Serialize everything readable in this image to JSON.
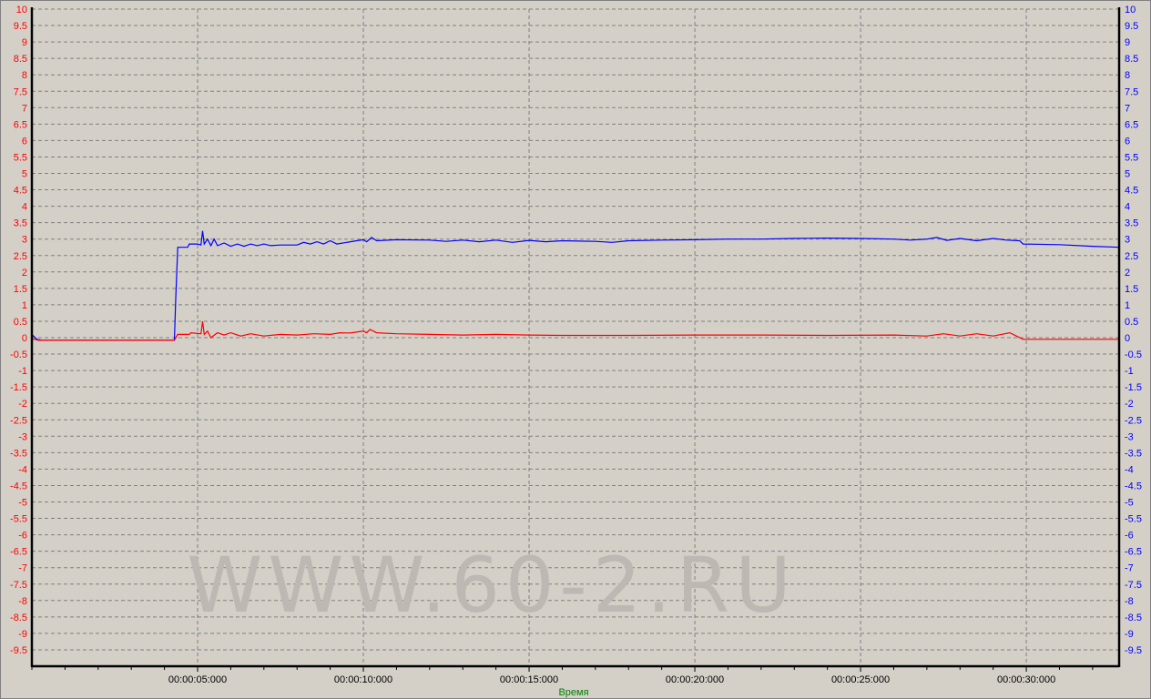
{
  "chart_data": {
    "type": "line",
    "title": "",
    "xlabel": "Время",
    "ylabel": "",
    "xlim": [
      "00:00:00:000",
      "00:00:32:800"
    ],
    "xlim_seconds": [
      0,
      32.8
    ],
    "ylim": [
      -10,
      10
    ],
    "y_tick_step": 0.5,
    "y_tick_labels": [
      "10",
      "9.5",
      "9",
      "8.5",
      "8",
      "7.5",
      "7",
      "6.5",
      "6",
      "5.5",
      "5",
      "4.5",
      "4",
      "3.5",
      "3",
      "2.5",
      "2",
      "1.5",
      "1",
      "0.5",
      "0",
      "-0.5",
      "-1",
      "-1.5",
      "-2",
      "-2.5",
      "-3",
      "-3.5",
      "-4",
      "-4.5",
      "-5",
      "-5.5",
      "-6",
      "-6.5",
      "-7",
      "-7.5",
      "-8",
      "-8.5",
      "-9",
      "-9.5"
    ],
    "x_tick_seconds": [
      5,
      10,
      15,
      20,
      25,
      30
    ],
    "x_tick_labels": [
      "00:00:05:000",
      "00:00:10:000",
      "00:00:15:000",
      "00:00:20:000",
      "00:00:25:000",
      "00:00:30:000"
    ],
    "x_minor_tick_step_seconds": 1,
    "grid": true,
    "left_axis_color": "#ff0000",
    "right_axis_color": "#0000ff",
    "xlabel_color": "#008000",
    "background": "#d4d0c8",
    "series": [
      {
        "color": "#0000ff",
        "axis": "right",
        "x": [
          0,
          0.15,
          0.3,
          4.3,
          4.34,
          4.4,
          4.7,
          4.75,
          5.0,
          5.1,
          5.15,
          5.2,
          5.3,
          5.4,
          5.5,
          5.6,
          5.8,
          6.0,
          6.2,
          6.4,
          6.6,
          6.8,
          7.0,
          7.2,
          7.5,
          8.0,
          8.2,
          8.4,
          8.6,
          8.8,
          9.0,
          9.2,
          9.5,
          9.8,
          10.0,
          10.1,
          10.25,
          10.4,
          11,
          12,
          12.5,
          13,
          13.5,
          14,
          14.5,
          15,
          15.5,
          16,
          17,
          17.5,
          18,
          19,
          20,
          21,
          22,
          23,
          24,
          25,
          26,
          26.5,
          27,
          27.3,
          27.6,
          28,
          28.5,
          29,
          29.4,
          29.8,
          29.9,
          31,
          32,
          32.8
        ],
        "y": [
          0.1,
          -0.05,
          -0.08,
          -0.08,
          1.2,
          2.75,
          2.75,
          2.85,
          2.85,
          2.82,
          3.25,
          2.85,
          3.0,
          2.8,
          3.0,
          2.8,
          2.88,
          2.78,
          2.85,
          2.78,
          2.85,
          2.8,
          2.85,
          2.8,
          2.82,
          2.82,
          2.9,
          2.85,
          2.92,
          2.85,
          2.95,
          2.85,
          2.9,
          2.95,
          2.98,
          2.92,
          3.05,
          2.95,
          2.98,
          2.97,
          2.93,
          2.97,
          2.92,
          2.97,
          2.9,
          2.96,
          2.92,
          2.95,
          2.93,
          2.9,
          2.95,
          2.97,
          2.98,
          3.0,
          3.0,
          3.02,
          3.03,
          3.02,
          3.0,
          2.97,
          3.0,
          3.05,
          2.96,
          3.02,
          2.95,
          3.02,
          2.97,
          2.95,
          2.85,
          2.83,
          2.78,
          2.75
        ]
      },
      {
        "color": "#ff0000",
        "axis": "left",
        "x": [
          0,
          0.2,
          4.3,
          4.4,
          4.75,
          4.8,
          5.1,
          5.15,
          5.2,
          5.3,
          5.4,
          5.6,
          5.8,
          6.0,
          6.3,
          6.6,
          7.0,
          7.5,
          8.0,
          8.5,
          9.0,
          9.3,
          9.6,
          10.0,
          10.1,
          10.2,
          10.4,
          11,
          12,
          13,
          14,
          15,
          16,
          18,
          20,
          22,
          24,
          26,
          27,
          27.5,
          28,
          28.5,
          29,
          29.5,
          29.7,
          29.9,
          32.8
        ],
        "y": [
          -0.03,
          -0.08,
          -0.08,
          0.1,
          0.1,
          0.15,
          0.12,
          0.5,
          0.1,
          0.2,
          0.0,
          0.15,
          0.08,
          0.15,
          0.05,
          0.12,
          0.05,
          0.1,
          0.08,
          0.12,
          0.1,
          0.15,
          0.14,
          0.2,
          0.15,
          0.25,
          0.15,
          0.12,
          0.1,
          0.08,
          0.1,
          0.08,
          0.07,
          0.07,
          0.08,
          0.08,
          0.07,
          0.08,
          0.05,
          0.12,
          0.05,
          0.12,
          0.05,
          0.15,
          0.05,
          -0.05,
          -0.05
        ]
      }
    ]
  },
  "watermark": "WWW.60-2.RU"
}
